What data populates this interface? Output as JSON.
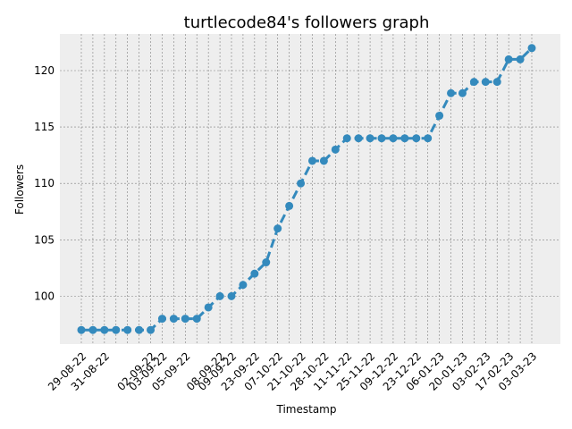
{
  "chart_data": {
    "type": "line",
    "title": "turtlecode84's followers graph",
    "xlabel": "Timestamp",
    "ylabel": "Followers",
    "ylim": [
      95.75,
      123.25
    ],
    "yticks": [
      100,
      105,
      110,
      115,
      120
    ],
    "grid": true,
    "line_style": "dashed",
    "colors": {
      "series": "#348abd",
      "plot_bg": "#eeeeee",
      "grid": "#808080"
    },
    "xtick_labels": [
      "29-08-22",
      "31-08-22",
      "02-09-22",
      "03-09-22",
      "05-09-22",
      "08-09-22",
      "09-09-22",
      "23-09-22",
      "07-10-22",
      "21-10-22",
      "28-10-22",
      "11-11-22",
      "25-11-22",
      "09-12-22",
      "23-12-22",
      "06-01-23",
      "20-01-23",
      "03-02-23",
      "17-02-23",
      "03-03-23"
    ],
    "xtick_positions": [
      0,
      2,
      6,
      7,
      9,
      12,
      13,
      15,
      17,
      19,
      21,
      23,
      25,
      27,
      29,
      31,
      33,
      35,
      37,
      39
    ],
    "series": [
      {
        "values": [
          97,
          97,
          97,
          97,
          97,
          97,
          97,
          98,
          98,
          98,
          98,
          99,
          100,
          100,
          101,
          102,
          103,
          106,
          108,
          110,
          112,
          112,
          113,
          114,
          114,
          114,
          114,
          114,
          114,
          114,
          114,
          116,
          118,
          118,
          119,
          119,
          119,
          121,
          121,
          122
        ]
      }
    ]
  }
}
